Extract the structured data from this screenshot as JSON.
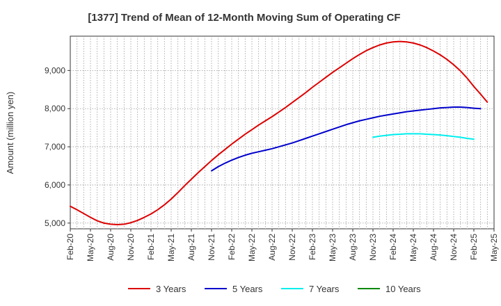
{
  "chart_data": {
    "type": "line",
    "title": "[1377]  Trend of Mean of 12-Month Moving Sum of Operating CF",
    "xlabel": "",
    "ylabel": "Amount (million yen)",
    "ylim": [
      4850,
      9900
    ],
    "yticks": [
      5000,
      6000,
      7000,
      8000,
      9000
    ],
    "ytick_labels": [
      "5,000",
      "6,000",
      "7,000",
      "8,000",
      "9,000"
    ],
    "x_start": "Feb-20",
    "x_end": "May-25",
    "month_count": 63,
    "xtick_labels": [
      "Feb-20",
      "May-20",
      "Aug-20",
      "Nov-20",
      "Feb-21",
      "May-21",
      "Aug-21",
      "Nov-21",
      "Feb-22",
      "May-22",
      "Aug-22",
      "Nov-22",
      "Feb-23",
      "May-23",
      "Aug-23",
      "Nov-23",
      "Feb-24",
      "May-24",
      "Aug-24",
      "Nov-24",
      "Feb-25",
      "May-25"
    ],
    "grid": true,
    "legend_position": "bottom",
    "series": [
      {
        "name": "3 Years",
        "color": "#dd0000",
        "start_index": 0,
        "values": [
          5440,
          5350,
          5250,
          5150,
          5060,
          5000,
          4970,
          4960,
          4970,
          5010,
          5070,
          5150,
          5240,
          5350,
          5480,
          5630,
          5800,
          5980,
          6150,
          6320,
          6480,
          6640,
          6790,
          6930,
          7070,
          7200,
          7330,
          7450,
          7570,
          7680,
          7790,
          7910,
          8030,
          8160,
          8290,
          8420,
          8560,
          8690,
          8820,
          8950,
          9070,
          9190,
          9310,
          9420,
          9520,
          9600,
          9670,
          9720,
          9750,
          9760,
          9750,
          9720,
          9670,
          9600,
          9510,
          9410,
          9290,
          9150,
          8990,
          8800,
          8580,
          8380,
          8170
        ]
      },
      {
        "name": "5 Years",
        "color": "#0000cc",
        "start_index": 21,
        "values": [
          6370,
          6480,
          6570,
          6650,
          6720,
          6780,
          6830,
          6870,
          6910,
          6950,
          7000,
          7050,
          7100,
          7160,
          7220,
          7280,
          7340,
          7400,
          7460,
          7520,
          7580,
          7630,
          7680,
          7720,
          7760,
          7800,
          7830,
          7860,
          7890,
          7920,
          7940,
          7960,
          7980,
          8000,
          8020,
          8030,
          8040,
          8040,
          8030,
          8010,
          8000
        ]
      },
      {
        "name": "7 Years",
        "color": "#00eeee",
        "start_index": 45,
        "values": [
          7250,
          7280,
          7300,
          7320,
          7330,
          7340,
          7340,
          7340,
          7330,
          7320,
          7310,
          7290,
          7270,
          7250,
          7220,
          7200
        ]
      },
      {
        "name": "10 Years",
        "color": "#008800",
        "start_index": 0,
        "values": []
      }
    ]
  }
}
